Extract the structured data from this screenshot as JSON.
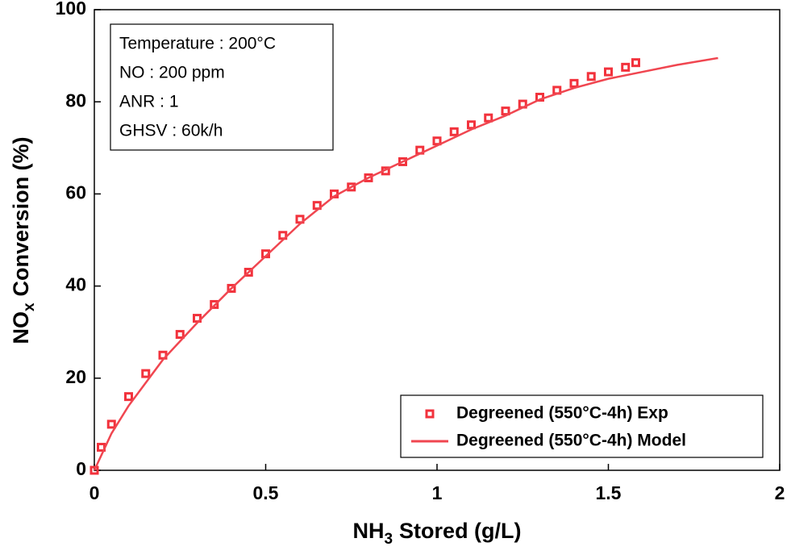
{
  "chart_data": {
    "type": "scatter",
    "xlabel": {
      "main": "NH",
      "sub": "3",
      "rest": "Stored (g/L)"
    },
    "ylabel": {
      "main": "NO",
      "sub": "x",
      "rest": "Conversion (%)"
    },
    "annotations": [
      "Temperature : 200°C",
      "NO : 200 ppm",
      "ANR : 1",
      "GHSV : 60k/h"
    ],
    "xlim": [
      0,
      2
    ],
    "xticks": [
      0,
      0.5,
      1,
      1.5,
      2
    ],
    "ylim": [
      0,
      100
    ],
    "yticks": [
      0,
      20,
      40,
      60,
      80,
      100
    ],
    "legend": "lower right",
    "series": [
      {
        "name": "Degreened (550°C-4h) Exp",
        "color": "#f2323c",
        "style": "markers",
        "x": [
          0,
          0.02,
          0.05,
          0.1,
          0.15,
          0.2,
          0.25,
          0.3,
          0.35,
          0.4,
          0.45,
          0.5,
          0.55,
          0.6,
          0.65,
          0.7,
          0.75,
          0.8,
          0.85,
          0.9,
          0.95,
          1.0,
          1.05,
          1.1,
          1.15,
          1.2,
          1.25,
          1.3,
          1.35,
          1.4,
          1.45,
          1.5,
          1.55,
          1.58
        ],
        "values": [
          0,
          5,
          10,
          16,
          21,
          25,
          29.5,
          33,
          36,
          39.5,
          43,
          47,
          51,
          54.5,
          57.5,
          60,
          61.5,
          63.5,
          65,
          67,
          69.5,
          71.5,
          73.5,
          75,
          76.5,
          78,
          79.5,
          81,
          82.5,
          84,
          85.5,
          86.5,
          87.5,
          88.5
        ]
      },
      {
        "name": "Degreened (550°C-4h) Model",
        "color": "#f04650",
        "style": "line",
        "x": [
          0,
          0.05,
          0.1,
          0.2,
          0.3,
          0.4,
          0.5,
          0.6,
          0.7,
          0.8,
          0.9,
          1.0,
          1.1,
          1.2,
          1.3,
          1.4,
          1.5,
          1.6,
          1.7,
          1.82
        ],
        "values": [
          0,
          8,
          14,
          24,
          32,
          39.5,
          46.5,
          53.5,
          59.5,
          63.5,
          67,
          70.5,
          74,
          77,
          80.5,
          83,
          85,
          86.5,
          88,
          89.5
        ]
      }
    ]
  }
}
